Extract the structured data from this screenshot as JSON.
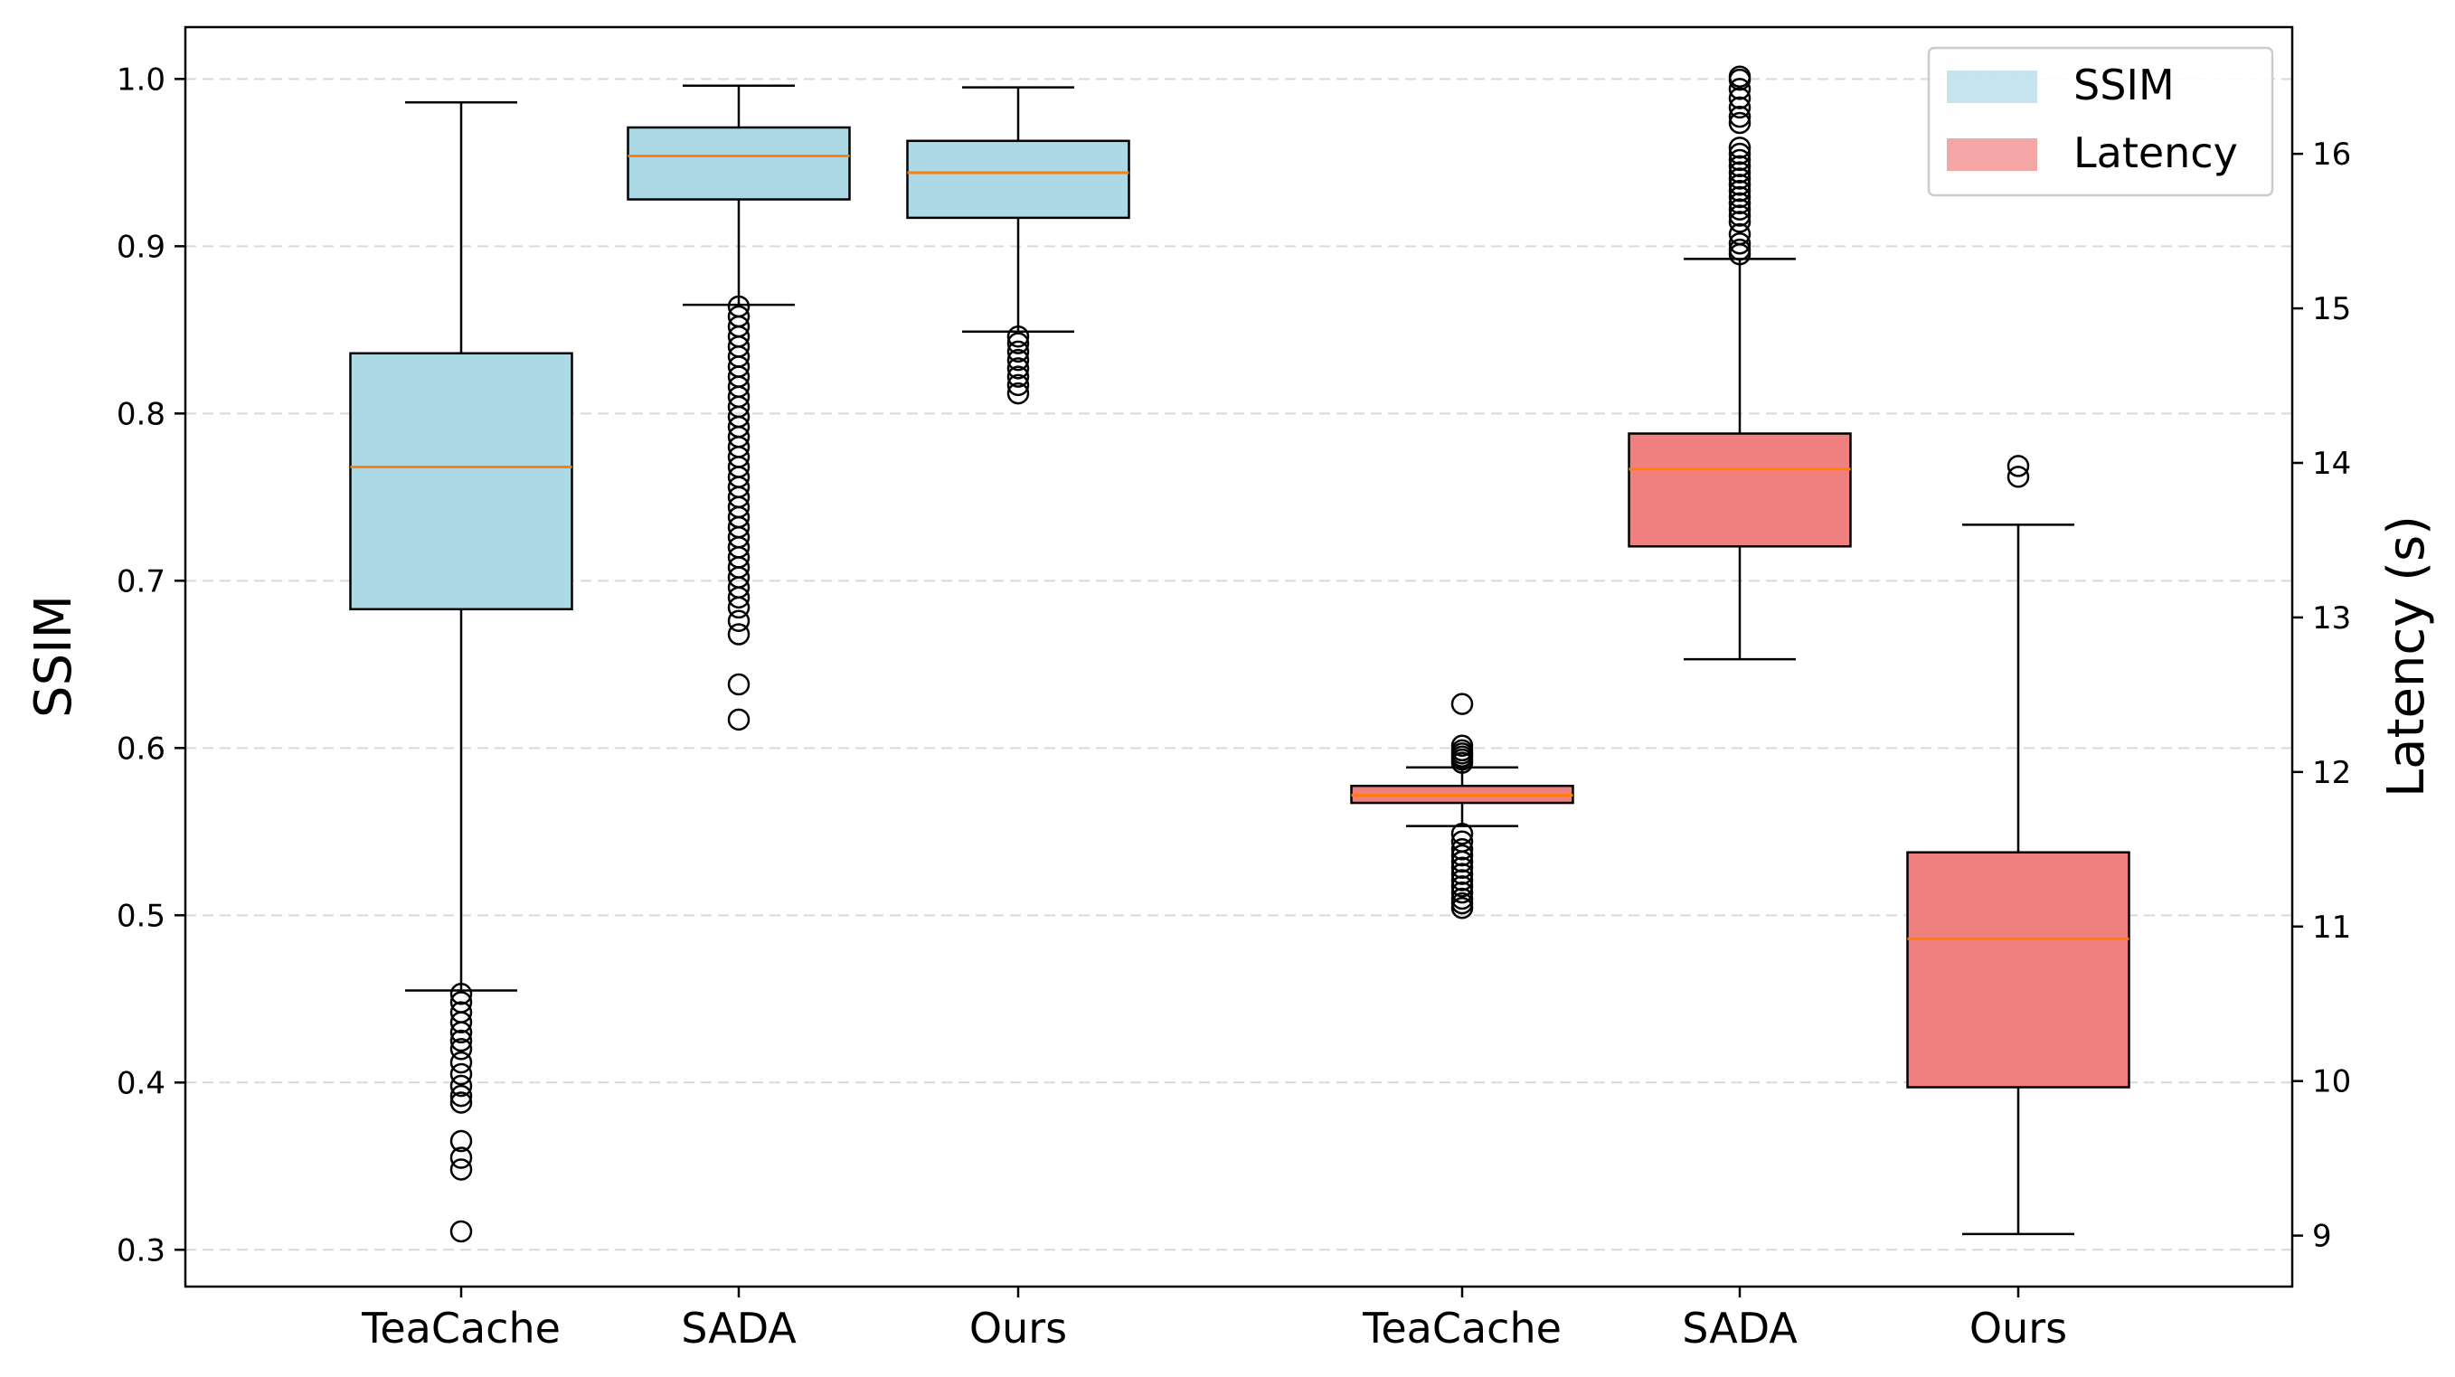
{
  "chart_data": {
    "type": "boxplot",
    "title": "",
    "categories": [
      "TeaCache",
      "SADA",
      "Ours",
      "TeaCache",
      "SADA",
      "Ours"
    ],
    "left_axis": {
      "label": "SSIM",
      "range": [
        0.278,
        1.031
      ],
      "ticks": [
        0.3,
        0.4,
        0.5,
        0.6,
        0.7,
        0.8,
        0.9,
        1.0
      ],
      "tick_labels": [
        "0.3",
        "0.4",
        "0.5",
        "0.6",
        "0.7",
        "0.8",
        "0.9",
        "1.0"
      ],
      "grid": true
    },
    "right_axis": {
      "label": "Latency (s)",
      "range": [
        8.67,
        16.82
      ],
      "ticks": [
        9,
        10,
        11,
        12,
        13,
        14,
        15,
        16
      ],
      "tick_labels": [
        "9",
        "10",
        "11",
        "12",
        "13",
        "14",
        "15",
        "16"
      ]
    },
    "legend": {
      "position": "top-right",
      "entries": [
        {
          "label": "SSIM",
          "color": "#add8e6"
        },
        {
          "label": "Latency",
          "color": "#f08080"
        }
      ]
    },
    "median_color": "#ff7f0e",
    "series": [
      {
        "name": "SSIM",
        "axis": "left",
        "color": "#add8e6",
        "boxes": [
          {
            "category": "TeaCache",
            "whisker_low": 0.455,
            "q1": 0.683,
            "median": 0.768,
            "q3": 0.836,
            "whisker_high": 0.986,
            "outliers": [
              0.453,
              0.448,
              0.442,
              0.436,
              0.43,
              0.425,
              0.42,
              0.412,
              0.405,
              0.398,
              0.392,
              0.388,
              0.365,
              0.355,
              0.348,
              0.311
            ]
          },
          {
            "category": "SADA",
            "whisker_low": 0.865,
            "q1": 0.928,
            "median": 0.954,
            "q3": 0.971,
            "whisker_high": 0.996,
            "outliers": [
              0.864,
              0.858,
              0.852,
              0.846,
              0.84,
              0.834,
              0.828,
              0.822,
              0.816,
              0.81,
              0.804,
              0.798,
              0.792,
              0.786,
              0.78,
              0.774,
              0.768,
              0.762,
              0.756,
              0.75,
              0.744,
              0.738,
              0.732,
              0.726,
              0.72,
              0.714,
              0.708,
              0.702,
              0.696,
              0.69,
              0.684,
              0.676,
              0.668,
              0.638,
              0.617
            ]
          },
          {
            "category": "Ours",
            "whisker_low": 0.849,
            "q1": 0.917,
            "median": 0.944,
            "q3": 0.963,
            "whisker_high": 0.995,
            "outliers": [
              0.846,
              0.842,
              0.837,
              0.832,
              0.827,
              0.822,
              0.817,
              0.812
            ]
          }
        ]
      },
      {
        "name": "Latency",
        "axis": "right",
        "color": "#f08080",
        "boxes": [
          {
            "category": "TeaCache",
            "whisker_low": 11.65,
            "q1": 11.8,
            "median": 11.85,
            "q3": 11.91,
            "whisker_high": 12.03,
            "outliers": [
              12.44,
              12.17,
              12.14,
              12.12,
              12.1,
              12.08,
              12.06,
              11.6,
              11.55,
              11.5,
              11.46,
              11.42,
              11.38,
              11.34,
              11.3,
              11.26,
              11.22,
              11.18,
              11.15,
              11.12
            ]
          },
          {
            "category": "SADA",
            "whisker_low": 12.73,
            "q1": 13.46,
            "median": 13.96,
            "q3": 14.19,
            "whisker_high": 15.32,
            "outliers": [
              15.35,
              15.38,
              15.42,
              15.48,
              15.56,
              15.6,
              15.64,
              15.68,
              15.72,
              15.76,
              15.8,
              15.84,
              15.88,
              15.92,
              15.96,
              16.0,
              16.04,
              16.2,
              16.24,
              16.3,
              16.36,
              16.42,
              16.48,
              16.5
            ]
          },
          {
            "category": "Ours",
            "whisker_low": 9.01,
            "q1": 9.96,
            "median": 10.92,
            "q3": 11.48,
            "whisker_high": 13.6,
            "outliers": [
              13.91,
              13.98
            ]
          }
        ]
      }
    ]
  }
}
